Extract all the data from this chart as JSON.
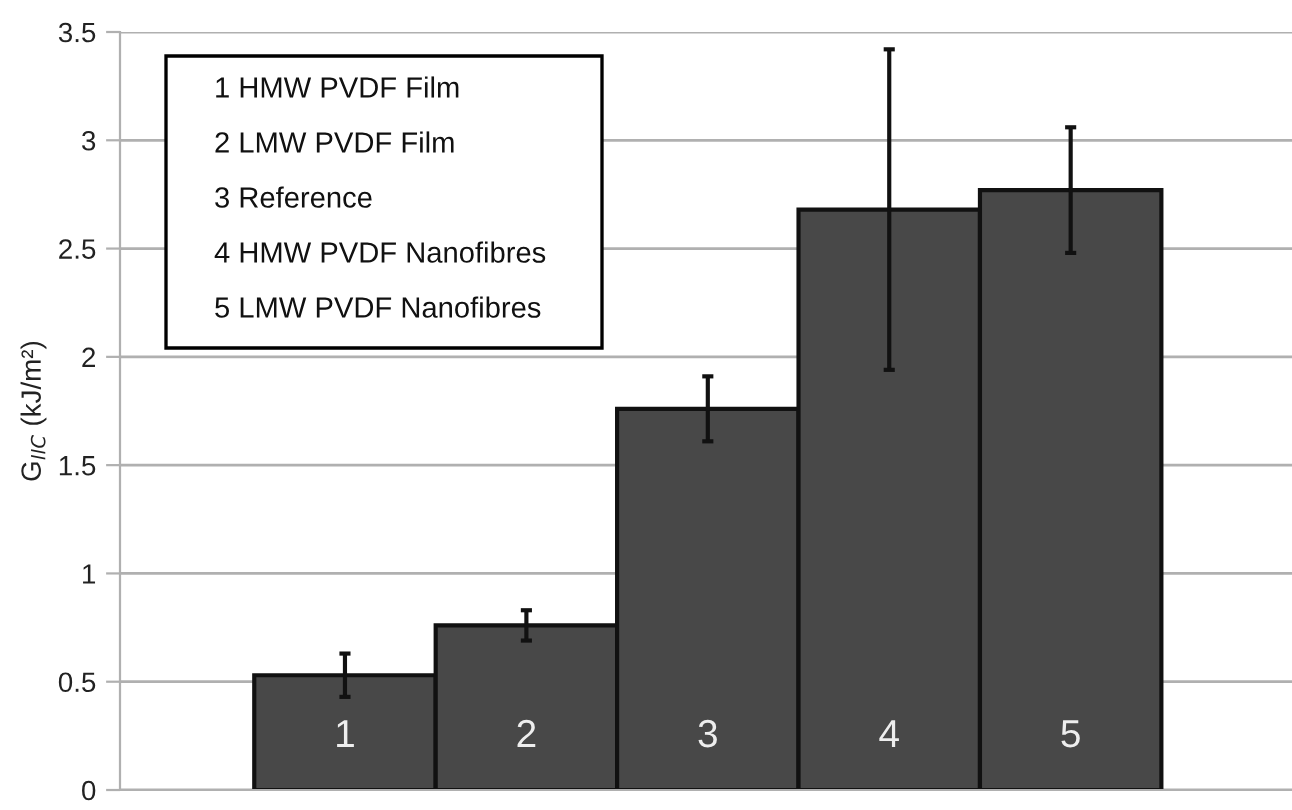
{
  "chart_data": {
    "type": "bar",
    "ylabel": "G$_{IIC}$ (kJ/m²)",
    "categories": [
      "1",
      "2",
      "3",
      "4",
      "5"
    ],
    "values": [
      0.53,
      0.76,
      1.76,
      2.68,
      2.77
    ],
    "errors": [
      0.1,
      0.07,
      0.15,
      0.74,
      0.29
    ],
    "color": "#484848",
    "ylim": [
      0,
      3.5
    ],
    "yticks": [
      0,
      0.5,
      1,
      1.5,
      2,
      2.5,
      3,
      3.5
    ],
    "grid": "y",
    "annotations": [
      "1 HMW PVDF Film",
      "2 LMW PVDF Film",
      "3 Reference",
      "4 HMW PVDF Nanofibres",
      "5 LMW PVDF Nanofibres"
    ]
  }
}
